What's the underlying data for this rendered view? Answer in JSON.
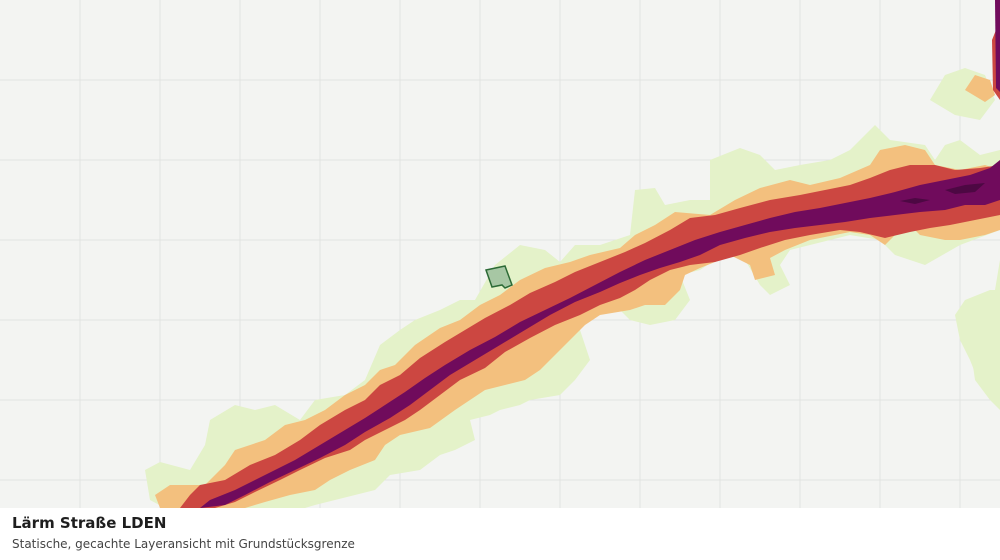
{
  "caption": {
    "title": "Lärm Straße LDEN",
    "subtitle": "Statische, gecachte Layeransicht mit Grundstücksgrenze"
  },
  "map": {
    "background_color": "#f3f4f2",
    "grid_color": "#e2e3e1",
    "noise_band_colors": [
      "#e4f2c9",
      "#f3c07e",
      "#cc4741",
      "#700b5c",
      "#4d0843"
    ],
    "parcel_fill": "#a7c7a4",
    "parcel_stroke": "#2c6a36"
  }
}
